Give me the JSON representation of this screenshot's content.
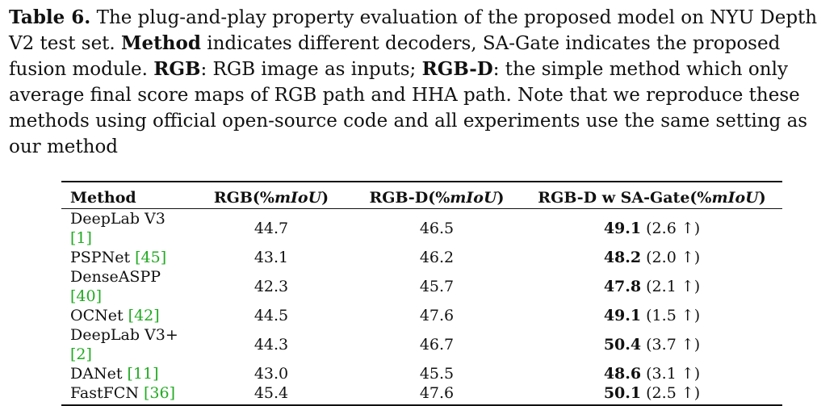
{
  "caption": {
    "label": "Table 6.",
    "line1_rest": " The plug-and-play property evaluation of the proposed model on NYU Depth",
    "line2_a": "V2 test set. ",
    "line2_bold": "Method",
    "line2_b": " indicates different decoders, SA-Gate indicates the proposed",
    "line3_a": "fusion module. ",
    "line3_bold1": "RGB",
    "line3_b": ": RGB image as inputs; ",
    "line3_bold2": "RGB-D",
    "line3_c": ": the simple method which only",
    "line4": "average final score maps of RGB path and HHA path. Note that we reproduce these",
    "line5": "methods using official open-source code and all experiments use the same setting as",
    "line6": "our method"
  },
  "table": {
    "headers": {
      "method": "Method",
      "rgb_prefix": "RGB(%",
      "rgb_unit": "mIoU",
      "rgb_suffix": ")",
      "rgbd_prefix": "RGB-D(%",
      "rgbd_unit": "mIoU",
      "rgbd_suffix": ")",
      "sagate_prefix": "RGB-D w SA-Gate(%",
      "sagate_unit": "mIoU",
      "sagate_suffix": ")"
    },
    "rows": [
      {
        "method": "DeepLab V3 ",
        "cite": "[1]",
        "rgb": "44.7",
        "rgbd": "46.5",
        "sagate": "49.1",
        "delta": " (2.6 ↑)"
      },
      {
        "method": "PSPNet ",
        "cite": "[45]",
        "rgb": "43.1",
        "rgbd": "46.2",
        "sagate": "48.2",
        "delta": " (2.0 ↑)"
      },
      {
        "method": "DenseASPP ",
        "cite": "[40]",
        "rgb": "42.3",
        "rgbd": "45.7",
        "sagate": "47.8",
        "delta": " (2.1 ↑)"
      },
      {
        "method": "OCNet ",
        "cite": "[42]",
        "rgb": "44.5",
        "rgbd": "47.6",
        "sagate": "49.1",
        "delta": " (1.5 ↑)"
      },
      {
        "method": "DeepLab V3+ ",
        "cite": "[2]",
        "rgb": "44.3",
        "rgbd": "46.7",
        "sagate": "50.4",
        "delta": " (3.7 ↑)"
      },
      {
        "method": "DANet ",
        "cite": "[11]",
        "rgb": "43.0",
        "rgbd": "45.5",
        "sagate": "48.6",
        "delta": " (3.1 ↑)"
      },
      {
        "method": "FastFCN ",
        "cite": "[36]",
        "rgb": "45.4",
        "rgbd": "47.6",
        "sagate": "50.1",
        "delta": " (2.5 ↑)"
      }
    ]
  },
  "colors": {
    "text": "#111111",
    "citation": "#22aa22"
  }
}
